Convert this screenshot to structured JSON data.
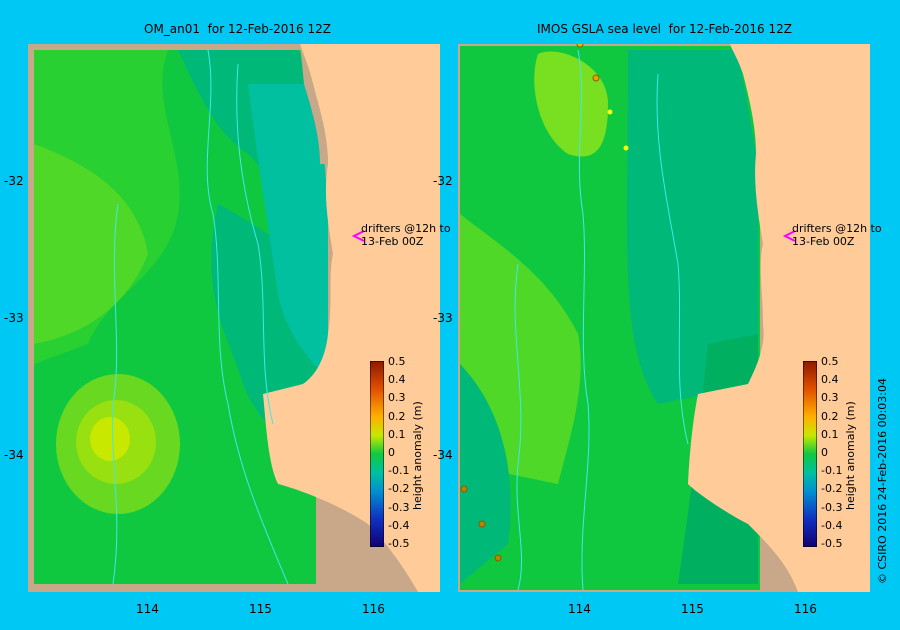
{
  "left_panel": {
    "title": "OM_an01  for 12-Feb-2016 12Z",
    "drifter_note_line1": "drifters @12h to",
    "drifter_note_line2": "13-Feb 00Z"
  },
  "right_panel": {
    "title": "IMOS GSLA sea level  for 12-Feb-2016 12Z",
    "drifter_note_line1": "drifters @12h to",
    "drifter_note_line2": "13-Feb 00Z"
  },
  "lat_ticks": [
    "-32",
    "-33",
    "-34"
  ],
  "lon_ticks": [
    "114",
    "115",
    "116"
  ],
  "colorbar": {
    "label": "height anomaly (m)",
    "ticks": [
      "0.5",
      "0.4",
      "0.3",
      "0.2",
      "0.1",
      "0",
      "-0.1",
      "-0.2",
      "-0.3",
      "-0.4",
      "-0.5"
    ]
  },
  "credit": "© CSIRO 2016   24-Feb-2016 00:03:04",
  "colors": {
    "background": "#00c8f5",
    "land": "#ffcc99",
    "mask": "#c8a888",
    "drifter_arrow": "#ff00ff"
  }
}
